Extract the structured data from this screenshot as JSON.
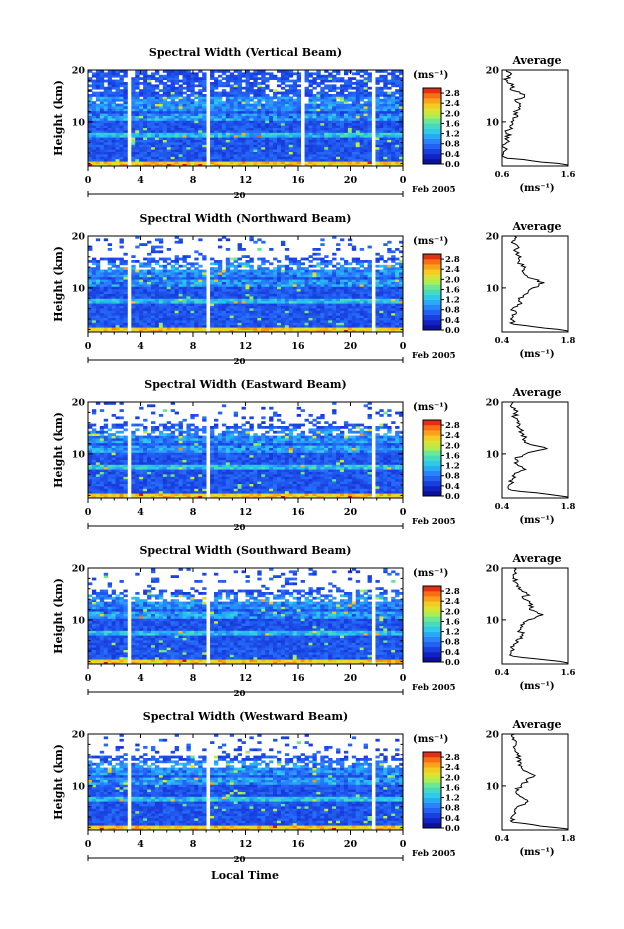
{
  "figure": {
    "date_label": "Feb 2005",
    "day_label": "20",
    "xlabel": "Local Time"
  },
  "chart_data": [
    {
      "type": "heatmap",
      "title": "Spectral Width (Vertical Beam)",
      "ylabel": "Height (km)",
      "xlim": [
        0,
        24
      ],
      "ylim": [
        1.5,
        20
      ],
      "x_ticks": [
        "0",
        "4",
        "8",
        "12",
        "16",
        "20",
        "0"
      ],
      "y_ticks": [
        "10",
        "20"
      ],
      "colorbar": {
        "unit": "(ms⁻¹)",
        "ticks": [
          "0.0",
          "0.4",
          "0.8",
          "1.2",
          "1.6",
          "2.0",
          "2.4",
          "2.8"
        ],
        "range": [
          0,
          3.0
        ]
      },
      "data_gaps_hours": [
        [
          2.9,
          3.2
        ],
        [
          9.0,
          9.3
        ],
        [
          16.2,
          16.4
        ],
        [
          21.5,
          21.8
        ]
      ],
      "profile": {
        "title": "Average",
        "xlabel": "(ms⁻¹)",
        "x_ticks": [
          "0.6",
          "1.6"
        ],
        "xlim": [
          0.6,
          1.6
        ],
        "y_ticks": [
          "10",
          "20"
        ],
        "height_km": [
          2,
          3,
          4,
          5,
          6,
          7,
          8,
          9,
          10,
          11,
          12,
          13,
          14,
          15,
          16,
          17,
          18,
          19,
          20
        ],
        "values": [
          1.45,
          0.68,
          0.62,
          0.64,
          0.67,
          0.7,
          0.66,
          0.72,
          0.74,
          0.84,
          0.78,
          0.88,
          0.8,
          0.94,
          0.78,
          0.74,
          0.68,
          0.72,
          0.66
        ]
      }
    },
    {
      "type": "heatmap",
      "title": "Spectral Width (Northward Beam)",
      "ylabel": "Height (km)",
      "xlim": [
        0,
        24
      ],
      "ylim": [
        1.5,
        20
      ],
      "x_ticks": [
        "0",
        "4",
        "8",
        "12",
        "16",
        "20",
        "0"
      ],
      "y_ticks": [
        "10",
        "20"
      ],
      "colorbar": {
        "unit": "(ms⁻¹)",
        "ticks": [
          "0.0",
          "0.4",
          "0.8",
          "1.2",
          "1.6",
          "2.0",
          "2.4",
          "2.8"
        ],
        "range": [
          0,
          3.0
        ]
      },
      "data_gaps_hours": [
        [
          2.9,
          3.2
        ],
        [
          9.0,
          9.3
        ],
        [
          21.5,
          21.8
        ]
      ],
      "profile": {
        "title": "Average",
        "xlabel": "(ms⁻¹)",
        "x_ticks": [
          "0.4",
          "1.8"
        ],
        "xlim": [
          0.4,
          1.8
        ],
        "y_ticks": [
          "10",
          "20"
        ],
        "height_km": [
          2,
          3,
          4,
          5,
          6,
          7,
          8,
          9,
          10,
          11,
          12,
          13,
          14,
          15,
          16,
          17,
          18,
          19,
          20
        ],
        "values": [
          1.6,
          0.65,
          0.58,
          0.7,
          0.62,
          0.82,
          0.75,
          0.95,
          1.05,
          1.3,
          0.95,
          0.85,
          0.9,
          0.75,
          0.8,
          0.7,
          0.74,
          0.62,
          0.66
        ]
      }
    },
    {
      "type": "heatmap",
      "title": "Spectral Width (Eastward Beam)",
      "ylabel": "Height (km)",
      "xlim": [
        0,
        24
      ],
      "ylim": [
        1.5,
        20
      ],
      "x_ticks": [
        "0",
        "4",
        "8",
        "12",
        "16",
        "20",
        "0"
      ],
      "y_ticks": [
        "10",
        "20"
      ],
      "colorbar": {
        "unit": "(ms⁻¹)",
        "ticks": [
          "0.0",
          "0.4",
          "0.8",
          "1.2",
          "1.6",
          "2.0",
          "2.4",
          "2.8"
        ],
        "range": [
          0,
          3.0
        ]
      },
      "data_gaps_hours": [
        [
          2.9,
          3.2
        ],
        [
          9.0,
          9.3
        ],
        [
          21.5,
          21.8
        ]
      ],
      "profile": {
        "title": "Average",
        "xlabel": "(ms⁻¹)",
        "x_ticks": [
          "0.4",
          "1.8"
        ],
        "xlim": [
          0.4,
          1.8
        ],
        "y_ticks": [
          "10",
          "20"
        ],
        "height_km": [
          2,
          3,
          4,
          5,
          6,
          7,
          8,
          9,
          10,
          11,
          12,
          13,
          14,
          15,
          16,
          17,
          18,
          19,
          20
        ],
        "values": [
          1.55,
          0.6,
          0.55,
          0.62,
          0.66,
          0.9,
          0.72,
          0.68,
          0.9,
          1.35,
          0.95,
          0.88,
          0.82,
          0.76,
          0.72,
          0.66,
          0.7,
          0.6,
          0.64
        ]
      }
    },
    {
      "type": "heatmap",
      "title": "Spectral Width (Southward Beam)",
      "ylabel": "Height (km)",
      "xlim": [
        0,
        24
      ],
      "ylim": [
        1.5,
        20
      ],
      "x_ticks": [
        "0",
        "4",
        "8",
        "12",
        "16",
        "20",
        "0"
      ],
      "y_ticks": [
        "10",
        "20"
      ],
      "colorbar": {
        "unit": "(ms⁻¹)",
        "ticks": [
          "0.0",
          "0.4",
          "0.8",
          "1.2",
          "1.6",
          "2.0",
          "2.4",
          "2.8"
        ],
        "range": [
          0,
          3.0
        ]
      },
      "data_gaps_hours": [
        [
          2.9,
          3.2
        ],
        [
          9.0,
          9.3
        ],
        [
          21.5,
          21.8
        ]
      ],
      "profile": {
        "title": "Average",
        "xlabel": "(ms⁻¹)",
        "x_ticks": [
          "0.4",
          "1.6"
        ],
        "xlim": [
          0.4,
          1.6
        ],
        "y_ticks": [
          "10",
          "20"
        ],
        "height_km": [
          2,
          3,
          4,
          5,
          6,
          7,
          8,
          9,
          10,
          11,
          12,
          13,
          14,
          15,
          16,
          17,
          18,
          19,
          20
        ],
        "values": [
          1.45,
          0.6,
          0.56,
          0.62,
          0.65,
          0.78,
          0.72,
          0.74,
          0.88,
          1.15,
          0.9,
          0.95,
          0.8,
          0.85,
          0.7,
          0.68,
          0.6,
          0.66,
          0.62
        ]
      }
    },
    {
      "type": "heatmap",
      "title": "Spectral Width (Westward Beam)",
      "ylabel": "Height (km)",
      "xlim": [
        0,
        24
      ],
      "ylim": [
        1.5,
        20
      ],
      "x_ticks": [
        "0",
        "4",
        "8",
        "12",
        "16",
        "20",
        "0"
      ],
      "y_ticks": [
        "10",
        "20"
      ],
      "colorbar": {
        "unit": "(ms⁻¹)",
        "ticks": [
          "0.0",
          "0.4",
          "0.8",
          "1.2",
          "1.6",
          "2.0",
          "2.4",
          "2.8"
        ],
        "range": [
          0,
          3.0
        ]
      },
      "data_gaps_hours": [
        [
          2.9,
          3.2
        ],
        [
          9.0,
          9.3
        ],
        [
          21.5,
          21.8
        ]
      ],
      "profile": {
        "title": "Average",
        "xlabel": "(ms⁻¹)",
        "x_ticks": [
          "0.4",
          "1.8"
        ],
        "xlim": [
          0.4,
          1.8
        ],
        "y_ticks": [
          "10",
          "20"
        ],
        "height_km": [
          2,
          3,
          4,
          5,
          6,
          7,
          8,
          9,
          10,
          11,
          12,
          13,
          14,
          15,
          16,
          17,
          18,
          19,
          20
        ],
        "values": [
          1.5,
          0.62,
          0.6,
          0.66,
          0.72,
          0.95,
          0.78,
          0.7,
          0.8,
          0.92,
          1.1,
          0.85,
          0.75,
          0.8,
          0.72,
          0.68,
          0.7,
          0.62,
          0.66
        ]
      }
    }
  ]
}
